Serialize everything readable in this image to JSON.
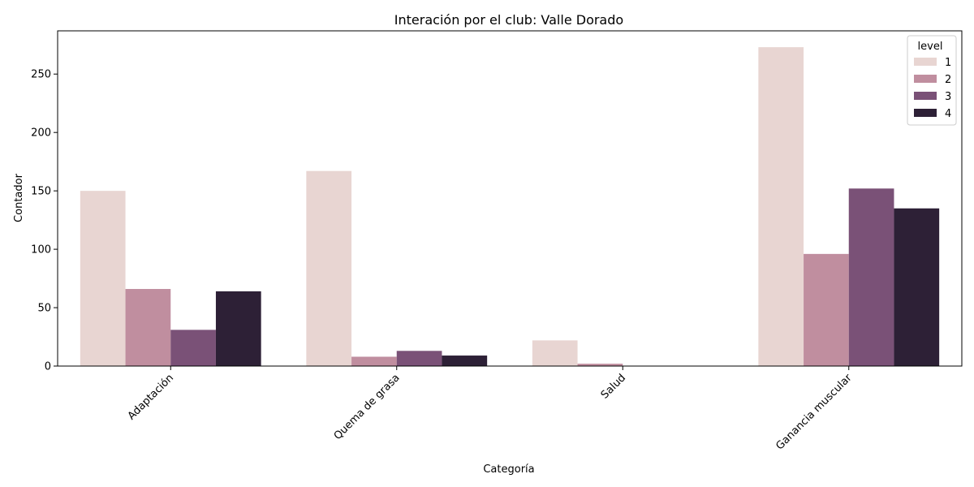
{
  "chart_data": {
    "type": "bar",
    "title": "Interación por el club: Valle Dorado",
    "xlabel": "Categoría",
    "ylabel": "Contador",
    "categories": [
      "Adaptación",
      "Quema de grasa",
      "Salud",
      "Ganancia muscular"
    ],
    "ylim": [
      0,
      287
    ],
    "yticks": [
      0,
      50,
      100,
      150,
      200,
      250
    ],
    "grid": false,
    "legend": {
      "title": "level",
      "placement": "top-right"
    },
    "series": [
      {
        "name": "1",
        "color": "#e8d5d2",
        "values": [
          150,
          167,
          22,
          273
        ]
      },
      {
        "name": "2",
        "color": "#c08e9f",
        "values": [
          66,
          8,
          2,
          96
        ]
      },
      {
        "name": "3",
        "color": "#7a5177",
        "values": [
          31,
          13,
          0,
          152
        ]
      },
      {
        "name": "4",
        "color": "#2d2036",
        "values": [
          64,
          9,
          0,
          135
        ]
      }
    ]
  }
}
